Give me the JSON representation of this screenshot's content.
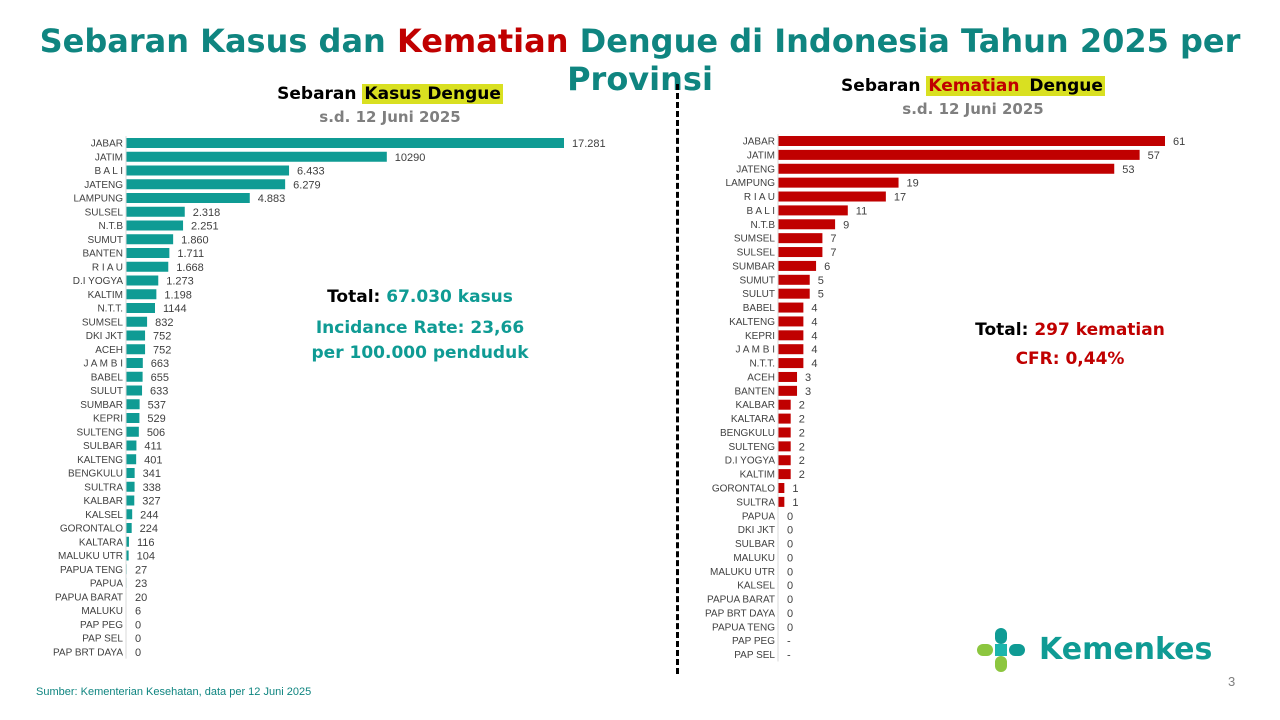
{
  "title": {
    "part1": "Sebaran Kasus dan ",
    "highlight": "Kematian",
    "part2": " Dengue di Indonesia Tahun 2025 per Provinsi"
  },
  "left_panel": {
    "title_prefix": "Sebaran ",
    "title_highlight": "Kasus Dengue",
    "subtitle": "s.d. 12 Juni 2025",
    "total_label": "Total: ",
    "total_value": "67.030 kasus",
    "ir_line1": "Incidance Rate: 23,66",
    "ir_line2": "per 100.000 penduduk"
  },
  "right_panel": {
    "title_prefix": "Sebaran ",
    "title_highlight": "Kematian",
    "title_suffix": " Dengue",
    "subtitle": "s.d. 12 Juni 2025",
    "total_label": "Total: ",
    "total_value": "297 kematian",
    "cfr": "CFR: 0,44%"
  },
  "source": "Sumber: Kementerian Kesehatan, data per 12 Juni 2025",
  "page_number": "3",
  "logo_text": "Kemenkes",
  "colors": {
    "teal": "#0f9b94",
    "red": "#c00000",
    "title_teal": "#0f8580"
  },
  "chart_data": [
    {
      "type": "bar",
      "orientation": "horizontal",
      "title": "Sebaran Kasus Dengue",
      "color": "#0f9b94",
      "max_value": 17281,
      "categories": [
        "JABAR",
        "JATIM",
        "B A L I",
        "JATENG",
        "LAMPUNG",
        "SULSEL",
        "N.T.B",
        "SUMUT",
        "BANTEN",
        "R I A U",
        "D.I YOGYA",
        "KALTIM",
        "N.T.T.",
        "SUMSEL",
        "DKI JKT",
        "ACEH",
        "J A M B I",
        "BABEL",
        "SULUT",
        "SUMBAR",
        "KEPRI",
        "SULTENG",
        "SULBAR",
        "KALTENG",
        "BENGKULU",
        "SULTRA",
        "KALBAR",
        "KALSEL",
        "GORONTALO",
        "KALTARA",
        "MALUKU UTR",
        "PAPUA TENG",
        "PAPUA",
        "PAPUA BARAT",
        "MALUKU",
        "PAP PEG",
        "PAP SEL",
        "PAP BRT DAYA"
      ],
      "values": [
        17281,
        10290,
        6433,
        6279,
        4883,
        2318,
        2251,
        1860,
        1711,
        1668,
        1273,
        1198,
        1144,
        832,
        752,
        752,
        663,
        655,
        633,
        537,
        529,
        506,
        411,
        401,
        341,
        338,
        327,
        244,
        224,
        116,
        104,
        27,
        23,
        20,
        6,
        0,
        0,
        0
      ],
      "labels": [
        "17.281",
        "10290",
        "6.433",
        "6.279",
        "4.883",
        "2.318",
        "2.251",
        "1.860",
        "1.711",
        "1.668",
        "1.273",
        "1.198",
        "1144",
        "832",
        "752",
        "752",
        "663",
        "655",
        "633",
        "537",
        "529",
        "506",
        "411",
        "401",
        "341",
        "338",
        "327",
        "244",
        "224",
        "116",
        "104",
        "27",
        "23",
        "20",
        "6",
        "0",
        "0",
        "0"
      ]
    },
    {
      "type": "bar",
      "orientation": "horizontal",
      "title": "Sebaran Kematian Dengue",
      "color": "#c00000",
      "max_value": 61,
      "categories": [
        "JABAR",
        "JATIM",
        "JATENG",
        "LAMPUNG",
        "R I A U",
        "B A L I",
        "N.T.B",
        "SUMSEL",
        "SULSEL",
        "SUMBAR",
        "SUMUT",
        "SULUT",
        "BABEL",
        "KALTENG",
        "KEPRI",
        "J A M B I",
        "N.T.T.",
        "ACEH",
        "BANTEN",
        "KALBAR",
        "KALTARA",
        "BENGKULU",
        "SULTENG",
        "D.I YOGYA",
        "KALTIM",
        "GORONTALO",
        "SULTRA",
        "PAPUA",
        "DKI JKT",
        "SULBAR",
        "MALUKU",
        "MALUKU UTR",
        "KALSEL",
        "PAPUA BARAT",
        "PAP BRT DAYA",
        "PAPUA TENG",
        "PAP PEG",
        "PAP SEL"
      ],
      "values": [
        61,
        57,
        53,
        19,
        17,
        11,
        9,
        7,
        7,
        6,
        5,
        5,
        4,
        4,
        4,
        4,
        4,
        3,
        3,
        2,
        2,
        2,
        2,
        2,
        2,
        1,
        1,
        0,
        0,
        0,
        0,
        0,
        0,
        0,
        0,
        0,
        null,
        null
      ],
      "labels": [
        "61",
        "57",
        "53",
        "19",
        "17",
        "11",
        "9",
        "7",
        "7",
        "6",
        "5",
        "5",
        "4",
        "4",
        "4",
        "4",
        "4",
        "3",
        "3",
        "2",
        "2",
        "2",
        "2",
        "2",
        "2",
        "1",
        "1",
        "0",
        "0",
        "0",
        "0",
        "0",
        "0",
        "0",
        "0",
        "0",
        "-",
        "-"
      ]
    }
  ]
}
